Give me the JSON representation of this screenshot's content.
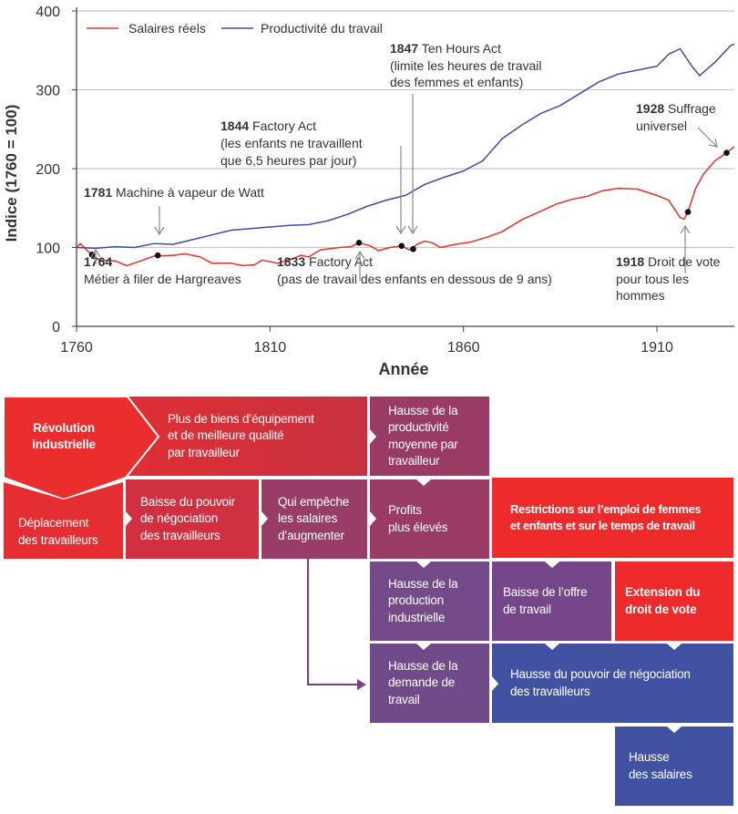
{
  "chart_data": {
    "type": "line",
    "xlabel": "Année",
    "ylabel": "Indice (1760 = 100)",
    "xlim": [
      1760,
      1930
    ],
    "ylim": [
      0,
      400
    ],
    "xticks": [
      "1760",
      "1810",
      "1860",
      "1910"
    ],
    "yticks": [
      "0",
      "100",
      "200",
      "300",
      "400"
    ],
    "grid": "horizontal",
    "legend_position": "top-left",
    "series": [
      {
        "name": "Salaires réels",
        "color": "#e8312a",
        "x": [
          1760,
          1761,
          1764,
          1766,
          1770,
          1773,
          1776,
          1780,
          1785,
          1788,
          1792,
          1795,
          1800,
          1803,
          1806,
          1808,
          1812,
          1816,
          1818,
          1820,
          1823,
          1828,
          1831,
          1833,
          1836,
          1838,
          1841,
          1844,
          1846,
          1848,
          1850,
          1852,
          1854,
          1858,
          1862,
          1866,
          1870,
          1875,
          1880,
          1884,
          1888,
          1892,
          1896,
          1900,
          1905,
          1910,
          1913,
          1916,
          1917,
          1918,
          1920,
          1922,
          1925,
          1928,
          1930
        ],
        "y": [
          100,
          105,
          90,
          84,
          83,
          77,
          82,
          89,
          90,
          92,
          88,
          80,
          80,
          77,
          78,
          84,
          80,
          86,
          90,
          88,
          97,
          100,
          101,
          106,
          102,
          96,
          100,
          102,
          97,
          104,
          108,
          106,
          100,
          104,
          107,
          113,
          120,
          135,
          146,
          155,
          161,
          165,
          172,
          175,
          174,
          166,
          160,
          138,
          136,
          145,
          175,
          193,
          210,
          220,
          228
        ]
      },
      {
        "name": "Productivité du travail",
        "color": "#3a4ea3",
        "x": [
          1760,
          1765,
          1770,
          1775,
          1780,
          1785,
          1790,
          1795,
          1800,
          1805,
          1810,
          1815,
          1820,
          1825,
          1830,
          1835,
          1840,
          1845,
          1850,
          1855,
          1860,
          1865,
          1870,
          1875,
          1880,
          1885,
          1890,
          1895,
          1900,
          1905,
          1910,
          1913,
          1916,
          1919,
          1921,
          1925,
          1929,
          1930
        ],
        "y": [
          100,
          99,
          101,
          100,
          105,
          104,
          110,
          116,
          122,
          124,
          126,
          128,
          129,
          134,
          142,
          152,
          160,
          166,
          180,
          189,
          197,
          210,
          238,
          255,
          270,
          280,
          295,
          310,
          320,
          325,
          330,
          345,
          352,
          330,
          318,
          335,
          356,
          358
        ]
      }
    ],
    "markers": [
      {
        "year": 1764,
        "value": 91
      },
      {
        "year": 1781,
        "value": 90
      },
      {
        "year": 1833,
        "value": 106
      },
      {
        "year": 1844,
        "value": 102
      },
      {
        "year": 1847,
        "value": 98
      },
      {
        "year": 1918,
        "value": 145
      },
      {
        "year": 1928,
        "value": 220
      }
    ],
    "annotations": {
      "a1847": {
        "year": "1847",
        "lines": [
          " Ten Hours Act",
          "(limite les heures de travail",
          "des femmes et enfants)"
        ]
      },
      "a1844": {
        "year": "1844",
        "lines": [
          " Factory Act",
          "(les enfants ne travaillent",
          "que 6,5 heures par jour)"
        ]
      },
      "a1781": {
        "year": "1781",
        "lines": [
          " Machine à vapeur de Watt"
        ]
      },
      "a1764": {
        "year": "1764",
        "lines": [
          "Métier à filer de Hargreaves"
        ]
      },
      "a1833": {
        "year": "1833",
        "lines": [
          " Factory Act",
          "(pas de travail des enfants en dessous de 9 ans)"
        ]
      },
      "a1918": {
        "year": "1918",
        "lines": [
          " Droit de vote",
          "pour tous les",
          "hommes"
        ]
      },
      "a1928": {
        "year": "1928",
        "lines": [
          " Suffrage",
          "universel"
        ]
      }
    }
  },
  "diagram": {
    "colors": {
      "red": "#ea2d2d",
      "crimson": "#cd3040",
      "plum": "#9a3b66",
      "purple": "#734a89",
      "blue": "#4152a3",
      "connector": "#7b3f80"
    },
    "boxes": {
      "revolution": "Révolution\nindustrielle",
      "biens": "Plus de biens d’équipement\net de meilleure qualité\npar travailleur",
      "productivite": "Hausse de la\nproductivité\nmoyenne par\ntravailleur",
      "deplacement": "Déplacement\ndes travailleurs",
      "baisse_pouvoir": "Baisse du pouvoir\nde négociation\ndes travailleurs",
      "empeche": "Qui empêche\nles salaires\nd’augmenter",
      "profits": "Profits\nplus élevés",
      "restrictions": "Restrictions sur l’emploi de femmes\net enfants et sur le temps de travail",
      "production": "Hausse de la\nproduction\nindustrielle",
      "offre": "Baisse de l’offre\nde travail",
      "vote": "Extension du\ndroit de vote",
      "demande": "Hausse de la\ndemande de\ntravail",
      "hausse_pouvoir": "Hausse du pouvoir de négociation\ndes travailleurs",
      "salaires": "Hausse\ndes salaires"
    }
  }
}
